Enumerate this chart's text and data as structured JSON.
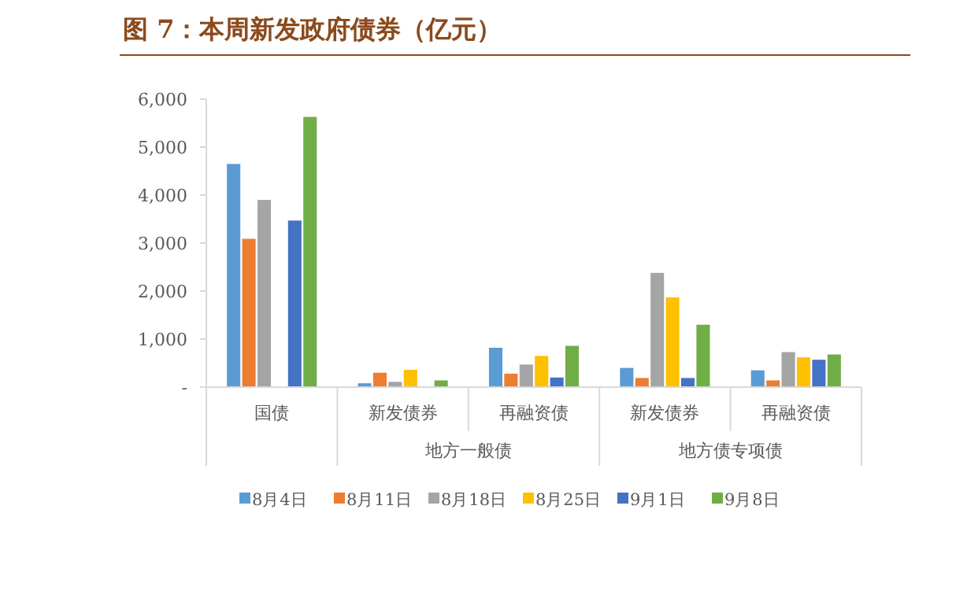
{
  "chart_data": {
    "type": "bar",
    "title": "图 7：本周新发政府债券（亿元）",
    "categories": [
      "国债",
      "新发债券",
      "再融资债",
      "新发债券",
      "再融资债"
    ],
    "annotations": [
      "地方一般债",
      "地方债专项债"
    ],
    "ylim": [
      0,
      6000
    ],
    "yticks": [
      {
        "value": 0,
        "label": "-"
      },
      {
        "value": 1000,
        "label": "1,000"
      },
      {
        "value": 2000,
        "label": "2,000"
      },
      {
        "value": 3000,
        "label": "3,000"
      },
      {
        "value": 4000,
        "label": "4,000"
      },
      {
        "value": 5000,
        "label": "5,000"
      },
      {
        "value": 6000,
        "label": "6,000"
      }
    ],
    "legend": "bottom",
    "grid": false,
    "series": [
      {
        "name": "8月4日",
        "color": "#5b9bd5",
        "values": [
          4650,
          80,
          820,
          400,
          350
        ]
      },
      {
        "name": "8月11日",
        "color": "#ed7d31",
        "values": [
          3090,
          300,
          280,
          190,
          140
        ]
      },
      {
        "name": "8月18日",
        "color": "#a5a5a5",
        "values": [
          3900,
          110,
          470,
          2380,
          730
        ]
      },
      {
        "name": "8月25日",
        "color": "#ffc000",
        "values": [
          null,
          360,
          650,
          1870,
          620
        ]
      },
      {
        "name": "9月1日",
        "color": "#4472c4",
        "values": [
          3470,
          null,
          200,
          190,
          570
        ]
      },
      {
        "name": "9月8日",
        "color": "#70ad47",
        "values": [
          5630,
          140,
          860,
          1300,
          680
        ]
      }
    ]
  }
}
